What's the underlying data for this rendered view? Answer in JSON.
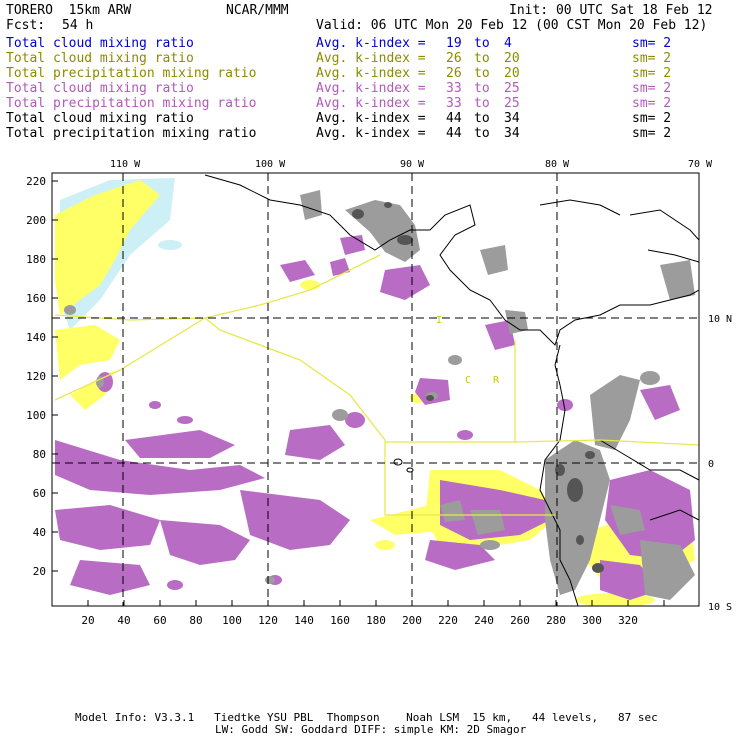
{
  "header": {
    "model": "TORERO  15km ARW",
    "center": "NCAR/MMM",
    "init": "Init: 00 UTC Sat 18 Feb 12",
    "fcst_label": "Fcst:",
    "fcst_value": "54 h",
    "valid": "Valid: 06 UTC Mon 20 Feb 12 (00 CST Mon 20 Feb 12)"
  },
  "legend": [
    {
      "field": "Total cloud mixing ratio",
      "stat": "Avg. k-index =",
      "from": "19",
      "to_word": "to",
      "to": "4",
      "sm": "sm= 2",
      "color": "#0000cc"
    },
    {
      "field": "Total cloud mixing ratio",
      "stat": "Avg. k-index =",
      "from": "26",
      "to_word": "to",
      "to": "20",
      "sm": "sm= 2",
      "color": "#8c8c00"
    },
    {
      "field": "Total precipitation mixing ratio",
      "stat": "Avg. k-index =",
      "from": "26",
      "to_word": "to",
      "to": "20",
      "sm": "sm= 2",
      "color": "#8c8c00"
    },
    {
      "field": "Total cloud mixing ratio",
      "stat": "Avg. k-index =",
      "from": "33",
      "to_word": "to",
      "to": "25",
      "sm": "sm= 2",
      "color": "#b25ab8"
    },
    {
      "field": "Total precipitation mixing ratio",
      "stat": "Avg. k-index =",
      "from": "33",
      "to_word": "to",
      "to": "25",
      "sm": "sm= 2",
      "color": "#b25ab8"
    },
    {
      "field": "Total cloud mixing ratio",
      "stat": "Avg. k-index =",
      "from": "44",
      "to_word": "to",
      "to": "34",
      "sm": "sm= 2",
      "color": "#000000"
    },
    {
      "field": "Total precipitation mixing ratio",
      "stat": "Avg. k-index =",
      "from": "44",
      "to_word": "to",
      "to": "34",
      "sm": "sm= 2",
      "color": "#000000"
    }
  ],
  "map": {
    "lon_labels": [
      "110 W",
      "100 W",
      "90 W",
      "80 W",
      "70 W"
    ],
    "lat_labels": [
      "10 N",
      "0",
      "10 S"
    ],
    "x_ticks": [
      "20",
      "40",
      "60",
      "80",
      "100",
      "120",
      "140",
      "160",
      "180",
      "200",
      "220",
      "240",
      "260",
      "280",
      "300",
      "320"
    ],
    "y_ticks": [
      "220",
      "200",
      "180",
      "160",
      "140",
      "120",
      "100",
      "80",
      "60",
      "40",
      "20"
    ],
    "region_labels": [
      "I",
      "C",
      "R"
    ],
    "colors": {
      "cloud_light": "#cdeff6",
      "yellow": "#ffff66",
      "purple": "#b86cc4",
      "gray": "#9c9c9c",
      "dark_gray": "#555555",
      "domain_lines": "#e8e850"
    }
  },
  "footer": {
    "line1": "Model Info: V3.3.1   Tiedtke YSU PBL  Thompson    Noah LSM  15 km,   44 levels,   87 sec",
    "line2": "LW: Godd SW: Goddard DIFF: simple KM: 2D Smagor"
  }
}
